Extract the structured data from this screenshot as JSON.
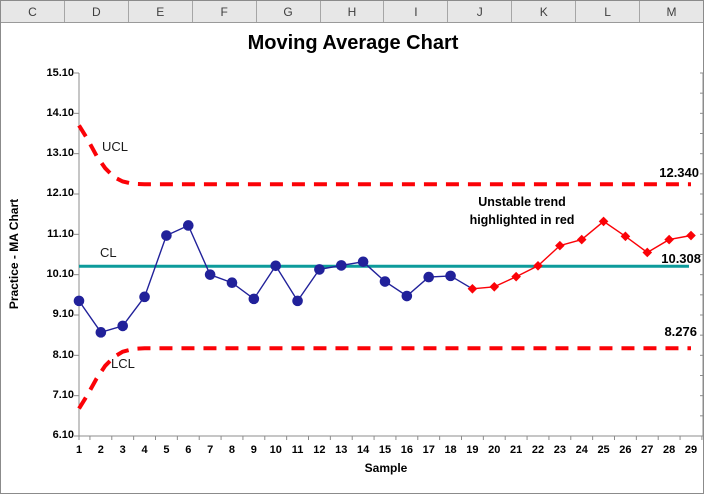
{
  "spreadsheet": {
    "columns": [
      "C",
      "D",
      "E",
      "F",
      "G",
      "H",
      "I",
      "J",
      "K",
      "L",
      "M"
    ]
  },
  "chart_data": {
    "type": "line",
    "title": "Moving Average Chart",
    "xlabel": "Sample",
    "ylabel": "Practice - MA Chart",
    "ylim": [
      6.1,
      15.1
    ],
    "yticks": [
      "15.10",
      "14.10",
      "13.10",
      "12.10",
      "11.10",
      "10.10",
      "9.10",
      "8.10",
      "7.10",
      "6.10"
    ],
    "x": [
      1,
      2,
      3,
      4,
      5,
      6,
      7,
      8,
      9,
      10,
      11,
      12,
      13,
      14,
      15,
      16,
      17,
      18,
      19,
      20,
      21,
      22,
      23,
      24,
      25,
      26,
      27,
      28,
      29
    ],
    "ma_values": [
      9.45,
      8.67,
      8.83,
      9.55,
      11.07,
      11.32,
      10.1,
      9.9,
      9.5,
      10.32,
      9.45,
      10.23,
      10.33,
      10.42,
      9.93,
      9.57,
      10.04,
      10.07,
      9.75,
      9.8,
      10.05,
      10.32,
      10.82,
      10.97,
      11.42,
      11.05,
      10.65,
      10.97,
      11.07
    ],
    "unstable_from_sample": 19,
    "grid": false,
    "legend": "none",
    "colors": {
      "stable_series": "#21219A",
      "unstable_series": "#FB0207",
      "center_line": "#0D9B9B",
      "control_limit": "#FB0207",
      "axis": "#8c8c8c"
    },
    "center_line": {
      "label": "CL",
      "value": 10.308,
      "value_label": "10.308"
    },
    "ucl": {
      "label": "UCL",
      "value": 12.34,
      "value_label": "12.340",
      "curve": [
        [
          1,
          13.8
        ],
        [
          1.4,
          13.45
        ],
        [
          1.8,
          13.05
        ],
        [
          2.2,
          12.74
        ],
        [
          2.6,
          12.52
        ],
        [
          3.0,
          12.41
        ],
        [
          3.5,
          12.35
        ],
        [
          4.0,
          12.34
        ]
      ]
    },
    "lcl": {
      "label": "LCL",
      "value": 8.276,
      "value_label": "8.276",
      "curve": [
        [
          1,
          6.78
        ],
        [
          1.4,
          7.13
        ],
        [
          1.8,
          7.52
        ],
        [
          2.2,
          7.84
        ],
        [
          2.6,
          8.06
        ],
        [
          3.0,
          8.19
        ],
        [
          3.5,
          8.26
        ],
        [
          4.0,
          8.276
        ]
      ]
    },
    "annotation": {
      "line1": "Unstable trend",
      "line2": "highlighted in red"
    }
  }
}
